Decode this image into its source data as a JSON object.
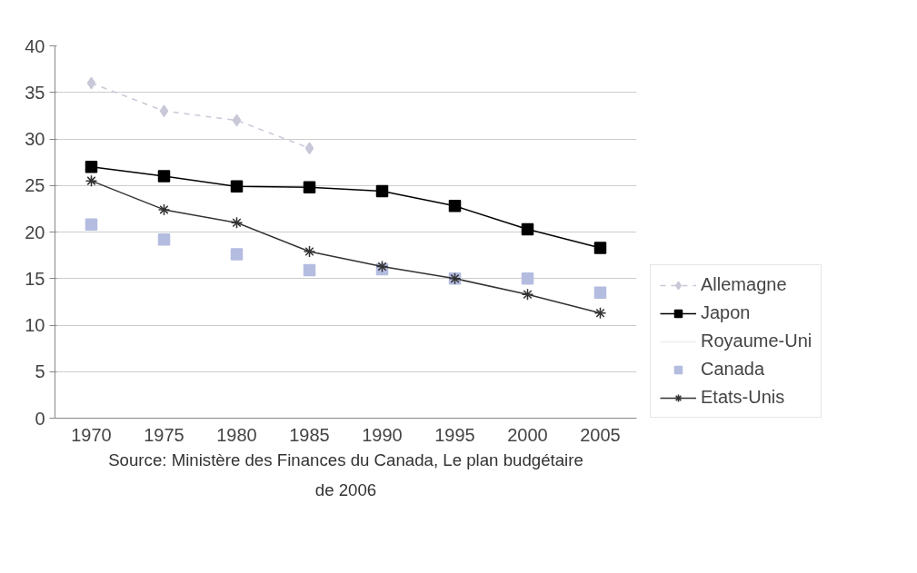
{
  "chart_data": {
    "type": "line",
    "categories": [
      "1970",
      "1975",
      "1980",
      "1985",
      "1990",
      "1995",
      "2000",
      "2005"
    ],
    "series": [
      {
        "name": "Allemagne",
        "color": "#c8c8d8",
        "marker": "diamond",
        "line_style": "dashed",
        "values": [
          36,
          33,
          32,
          29,
          null,
          null,
          null,
          null
        ]
      },
      {
        "name": "Japon",
        "color": "#000000",
        "marker": "square",
        "values": [
          27,
          26,
          24.9,
          24.8,
          24.4,
          22.8,
          20.3,
          18.3
        ]
      },
      {
        "name": "Royaume-Uni",
        "color": "#eeeeee",
        "marker": "none",
        "values": [
          null,
          null,
          null,
          null,
          null,
          null,
          null,
          null
        ]
      },
      {
        "name": "Canada",
        "type": "scatter",
        "color": "#b4bce0",
        "marker": "square",
        "values": [
          20.8,
          19.2,
          17.6,
          15.9,
          16,
          15,
          15,
          13.5
        ]
      },
      {
        "name": "Etats-Unis",
        "color": "#333333",
        "marker": "cross",
        "values": [
          25.5,
          22.4,
          21,
          17.9,
          16.3,
          15,
          13.3,
          11.3
        ]
      }
    ],
    "ylim": [
      0,
      40
    ],
    "yticks": [
      0,
      5,
      10,
      15,
      20,
      25,
      30,
      35,
      40
    ],
    "grid": "y",
    "legend": "right",
    "annotations": [
      "Source: Ministère des Finances du Canada, Le plan budgétaire de 2006"
    ]
  }
}
